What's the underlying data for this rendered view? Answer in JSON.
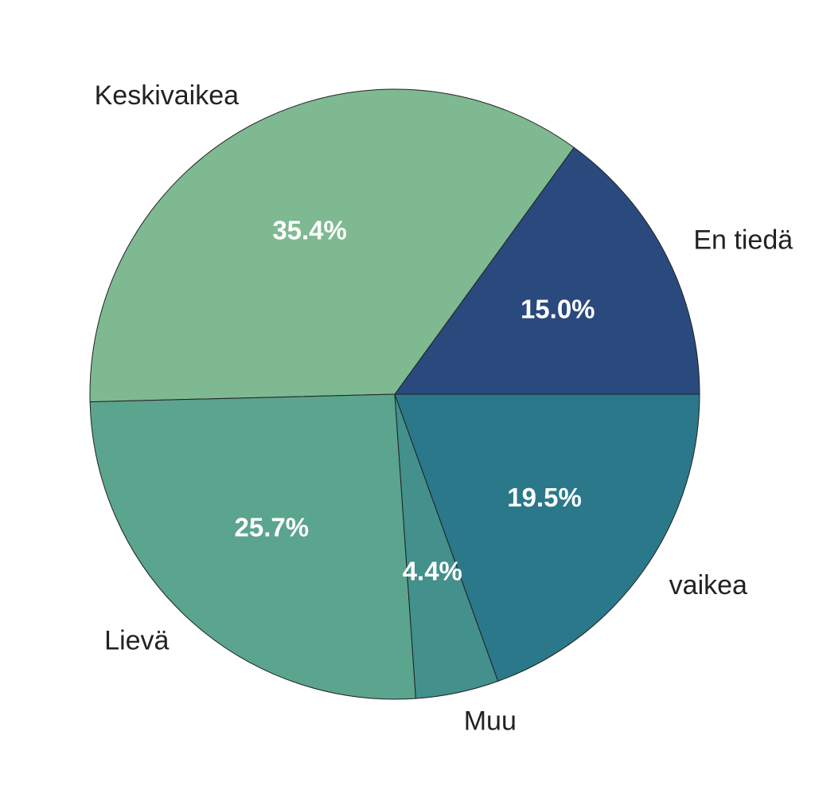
{
  "chart_data": {
    "type": "pie",
    "categories": [
      "En tiedä",
      "Keskivaikea",
      "Lievä",
      "Muu",
      "vaikea"
    ],
    "values": [
      15.0,
      35.4,
      25.7,
      4.4,
      19.5
    ],
    "value_labels": [
      "15.0%",
      "35.4%",
      "25.7%",
      "4.4%",
      "19.5%"
    ],
    "colors": [
      "#2a4a7e",
      "#7eb991",
      "#5ba48e",
      "#43908c",
      "#2a788a"
    ]
  }
}
